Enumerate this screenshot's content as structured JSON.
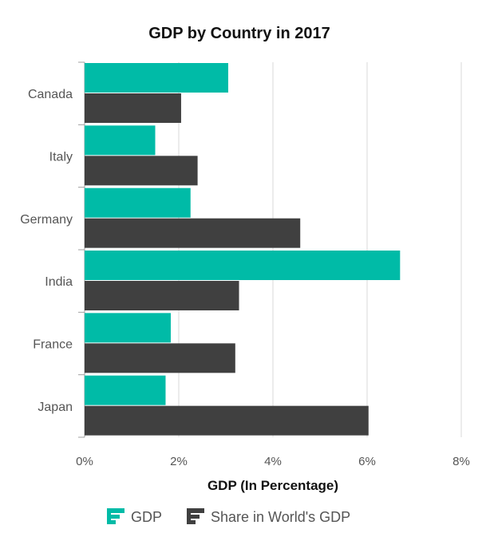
{
  "chart_data": {
    "type": "bar",
    "orientation": "horizontal",
    "title": "GDP by Country in 2017",
    "xlabel": "GDP (In Percentage)",
    "ylabel": "",
    "categories": [
      "Canada",
      "Italy",
      "Germany",
      "India",
      "France",
      "Japan"
    ],
    "series": [
      {
        "name": "GDP",
        "color": "#00bba7",
        "values": [
          3.05,
          1.5,
          2.25,
          6.7,
          1.83,
          1.72
        ]
      },
      {
        "name": "Share in World's GDP",
        "color": "#404040",
        "values": [
          2.05,
          2.4,
          4.58,
          3.28,
          3.2,
          6.03
        ]
      }
    ],
    "xlim": [
      0,
      8
    ],
    "xticks": [
      "0%",
      "2%",
      "4%",
      "6%",
      "8%"
    ],
    "xtick_values": [
      0,
      2,
      4,
      6,
      8
    ],
    "grid": true,
    "legend_position": "bottom"
  },
  "legend": {
    "items": [
      {
        "label": "GDP",
        "icon": "horizontal-bar-icon",
        "color": "#00bba7"
      },
      {
        "label": "Share in World's GDP",
        "icon": "horizontal-bar-icon",
        "color": "#404040"
      }
    ]
  },
  "colors": {
    "grid": "#d9d9d9",
    "axis": "#a0a0a0",
    "text": "#555555"
  }
}
